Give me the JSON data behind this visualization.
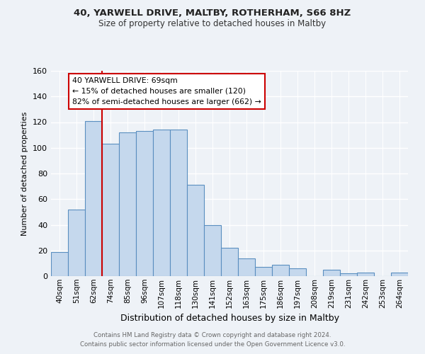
{
  "title1": "40, YARWELL DRIVE, MALTBY, ROTHERHAM, S66 8HZ",
  "title2": "Size of property relative to detached houses in Maltby",
  "xlabel": "Distribution of detached houses by size in Maltby",
  "ylabel": "Number of detached properties",
  "bar_labels": [
    "40sqm",
    "51sqm",
    "62sqm",
    "74sqm",
    "85sqm",
    "96sqm",
    "107sqm",
    "118sqm",
    "130sqm",
    "141sqm",
    "152sqm",
    "163sqm",
    "175sqm",
    "186sqm",
    "197sqm",
    "208sqm",
    "219sqm",
    "231sqm",
    "242sqm",
    "253sqm",
    "264sqm"
  ],
  "bar_values": [
    19,
    52,
    121,
    103,
    112,
    113,
    114,
    114,
    71,
    40,
    22,
    14,
    7,
    9,
    6,
    0,
    5,
    2,
    3,
    0,
    3
  ],
  "bar_color": "#c5d8ed",
  "bar_edge_color": "#5a8fc0",
  "ylim": [
    0,
    160
  ],
  "yticks": [
    0,
    20,
    40,
    60,
    80,
    100,
    120,
    140,
    160
  ],
  "vline_x": 2.5,
  "annotation_text": "40 YARWELL DRIVE: 69sqm\n← 15% of detached houses are smaller (120)\n82% of semi-detached houses are larger (662) →",
  "annotation_box_color": "#ffffff",
  "annotation_border_color": "#cc0000",
  "vline_color": "#cc0000",
  "footer1": "Contains HM Land Registry data © Crown copyright and database right 2024.",
  "footer2": "Contains public sector information licensed under the Open Government Licence v3.0.",
  "bg_color": "#eef2f7",
  "grid_color": "#ffffff",
  "title1_fontsize": 9.5,
  "title2_fontsize": 8.5,
  "ylabel_fontsize": 8,
  "xlabel_fontsize": 9
}
